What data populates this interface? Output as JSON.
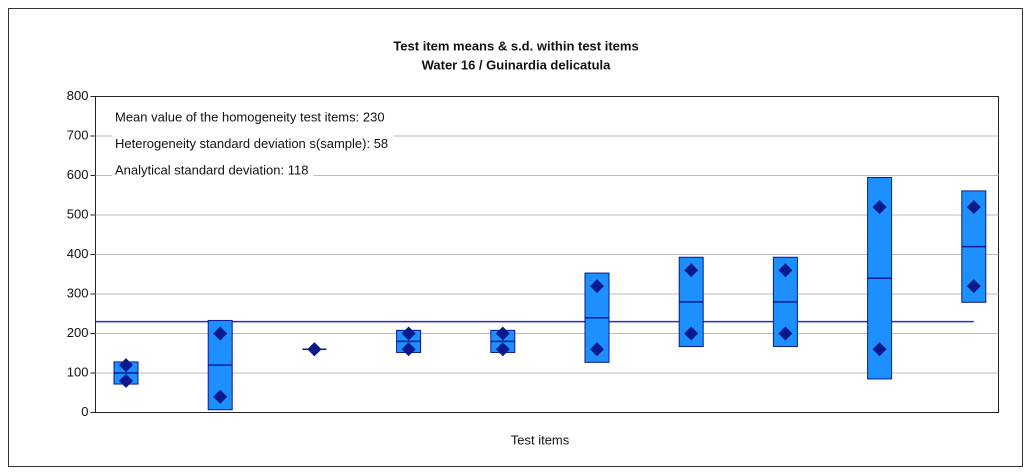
{
  "chart_data": {
    "type": "meansd",
    "title": "Test item means & s.d. within test items",
    "subtitle": "Water 16 / Guinardia delicatula",
    "x_label": "Test items",
    "annotations": [
      "Mean value of the homogeneity test items: 230",
      "Heterogeneity standard deviation s(sample): 58",
      "Analytical standard deviation: 118"
    ],
    "overall_mean": 230,
    "items": [
      {
        "values": [
          80,
          120
        ],
        "mean": 100,
        "sd": 28
      },
      {
        "values": [
          40,
          200
        ],
        "mean": 120,
        "sd": 113
      },
      {
        "values": [
          160,
          160
        ],
        "mean": 160,
        "sd": 0
      },
      {
        "values": [
          160,
          200
        ],
        "mean": 180,
        "sd": 28
      },
      {
        "values": [
          160,
          200
        ],
        "mean": 180,
        "sd": 28
      },
      {
        "values": [
          160,
          320
        ],
        "mean": 240,
        "sd": 113
      },
      {
        "values": [
          200,
          360
        ],
        "mean": 280,
        "sd": 113
      },
      {
        "values": [
          200,
          360
        ],
        "mean": 280,
        "sd": 113
      },
      {
        "values": [
          160,
          520
        ],
        "mean": 340,
        "sd": 255
      },
      {
        "values": [
          320,
          520
        ],
        "mean": 420,
        "sd": 141
      }
    ],
    "box_color": "#1e8fff",
    "point_color": "#0a1a8c",
    "mean_line_color": "#2a2ad0",
    "ylim": [
      0,
      800
    ],
    "yticks": [
      0,
      100,
      200,
      300,
      400,
      500,
      600,
      700,
      800
    ],
    "grid": true
  }
}
